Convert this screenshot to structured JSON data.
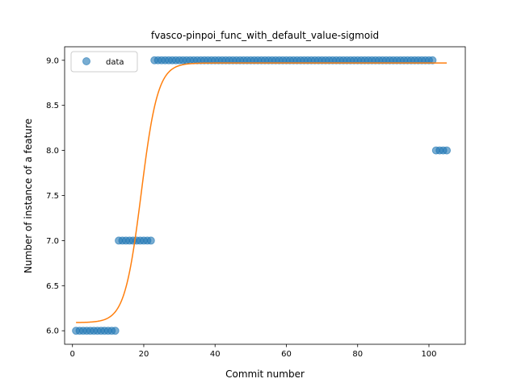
{
  "chart_data": {
    "type": "scatter",
    "title": "fvasco-pinpoi_func_with_default_value-sigmoid",
    "xlabel": "Commit number",
    "ylabel": "Number of instance of a feature",
    "xlim": [
      -2.2,
      110.2
    ],
    "ylim": [
      5.85,
      9.15
    ],
    "xticks": [
      0,
      20,
      40,
      60,
      80,
      100
    ],
    "yticks": [
      6.0,
      6.5,
      7.0,
      7.5,
      8.0,
      8.5,
      9.0
    ],
    "ytick_labels": [
      "6.0",
      "6.5",
      "7.0",
      "7.5",
      "8.0",
      "8.5",
      "9.0"
    ],
    "grid": false,
    "legend_position": "upper-left",
    "series": [
      {
        "name": "data",
        "kind": "points",
        "color": "#1f77b4",
        "segments": [
          {
            "x_from": 1,
            "x_to": 12,
            "y": 6.0
          },
          {
            "x_from": 13,
            "x_to": 22,
            "y": 7.0
          },
          {
            "x_from": 23,
            "x_to": 101,
            "y": 9.0
          },
          {
            "x_from": 102,
            "x_to": 105,
            "y": 8.0
          }
        ]
      },
      {
        "kind": "sigmoid-fit",
        "color": "#ff7f0e",
        "x_from": 1,
        "x_to": 105,
        "lower": 6.09,
        "upper": 8.97,
        "midpoint": 19.3,
        "steepness": 0.43
      }
    ]
  }
}
